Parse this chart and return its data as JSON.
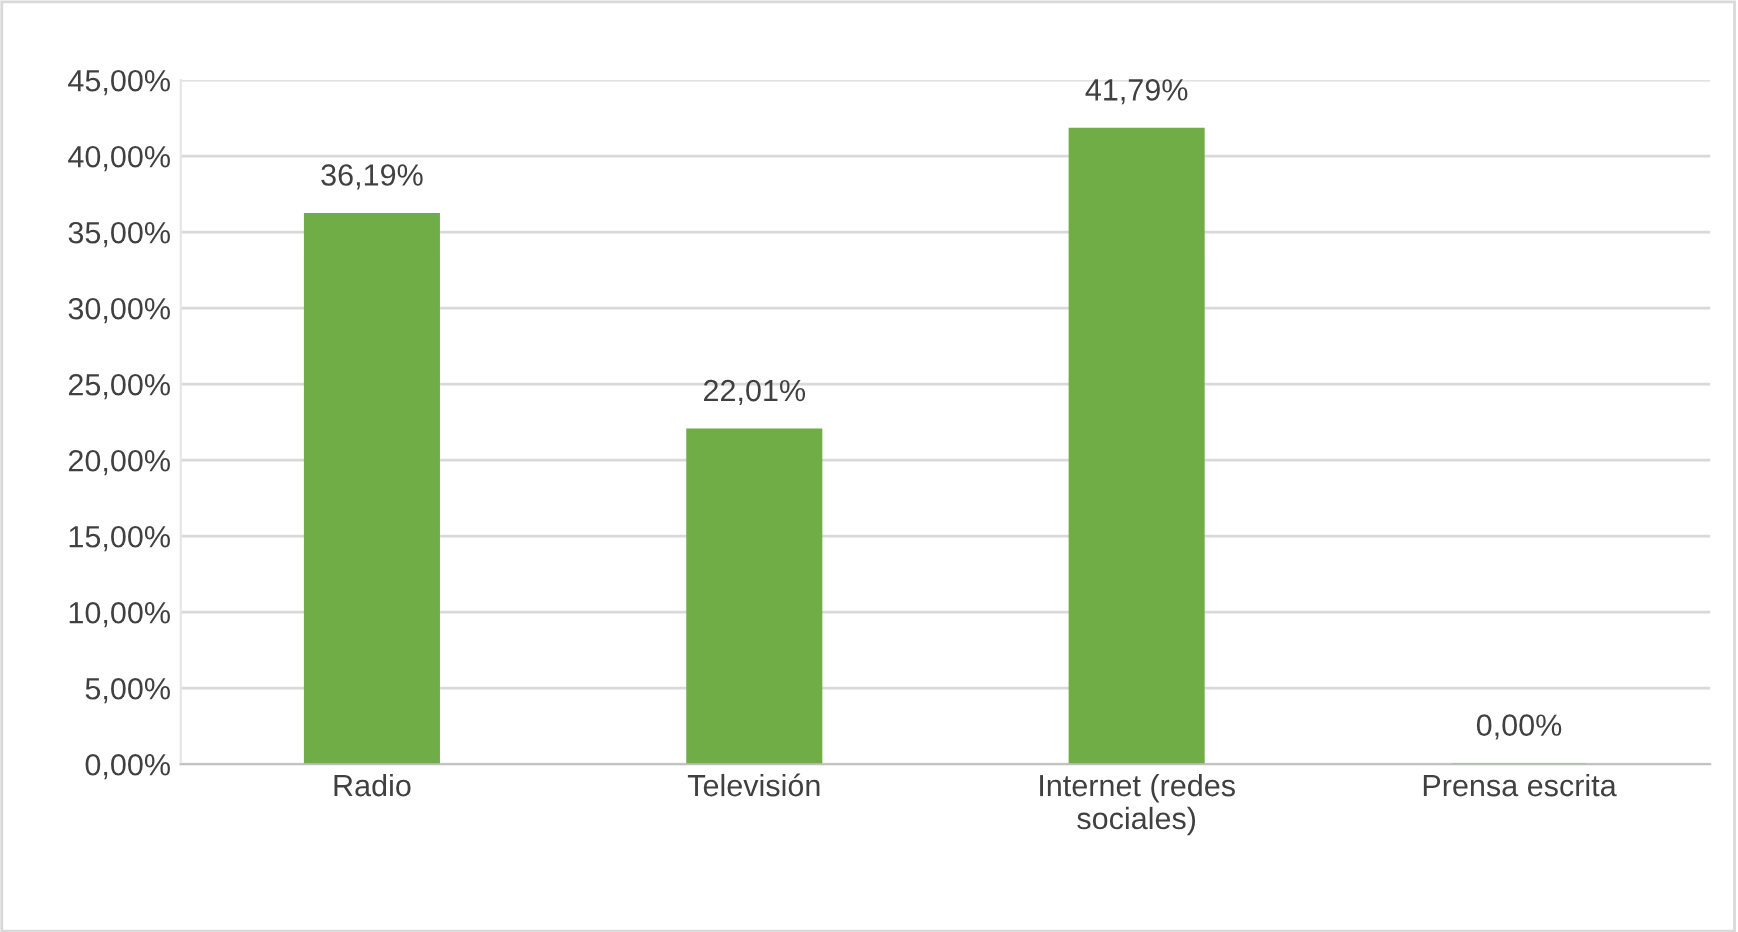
{
  "chart_data": {
    "type": "bar",
    "categories": [
      "Radio",
      "Televisión",
      "Internet (redes\nsociales)",
      "Prensa escrita"
    ],
    "values": [
      36.19,
      22.01,
      41.79,
      0.0
    ],
    "color": "#70ad47",
    "value_labels": [
      "36,19%",
      "22,01%",
      "41,79%",
      "0,00%"
    ],
    "ylim": [
      0,
      45
    ],
    "yticks": [
      {
        "value": 0,
        "label": "0,00%"
      },
      {
        "value": 5,
        "label": "5,00%"
      },
      {
        "value": 10,
        "label": "10,00%"
      },
      {
        "value": 15,
        "label": "15,00%"
      },
      {
        "value": 20,
        "label": "20,00%"
      },
      {
        "value": 25,
        "label": "25,00%"
      },
      {
        "value": 30,
        "label": "30,00%"
      },
      {
        "value": 35,
        "label": "35,00%"
      },
      {
        "value": 40,
        "label": "40,00%"
      },
      {
        "value": 45,
        "label": "45,00%"
      }
    ],
    "grid": "y",
    "legend": false
  }
}
